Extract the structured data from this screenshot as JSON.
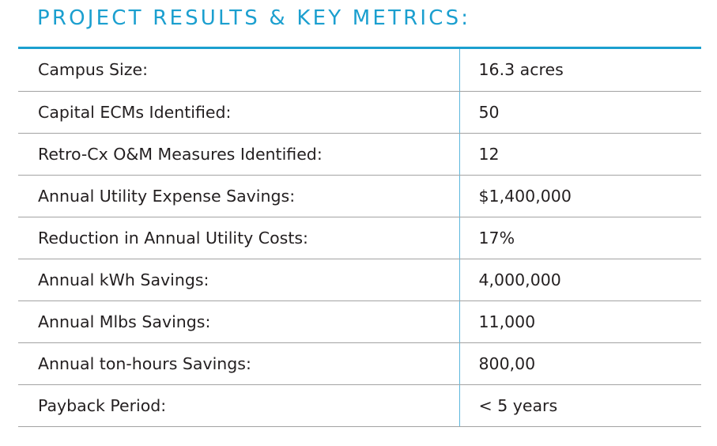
{
  "title": "PROJECT RESULTS & KEY METRICS:",
  "accent_color": "#1b9fcf",
  "rows": [
    {
      "label": "Campus Size:",
      "value": "16.3 acres"
    },
    {
      "label": "Capital ECMs Identified:",
      "value": "50"
    },
    {
      "label": "Retro-Cx O&M Measures Identified:",
      "value": "12"
    },
    {
      "label": "Annual Utility Expense Savings:",
      "value": "$1,400,000"
    },
    {
      "label": "Reduction in Annual Utility Costs:",
      "value": "17%"
    },
    {
      "label": "Annual kWh Savings:",
      "value": "4,000,000"
    },
    {
      "label": "Annual Mlbs Savings:",
      "value": "11,000"
    },
    {
      "label": "Annual ton-hours Savings:",
      "value": "800,00"
    },
    {
      "label": "Payback Period:",
      "value": "< 5 years"
    }
  ]
}
